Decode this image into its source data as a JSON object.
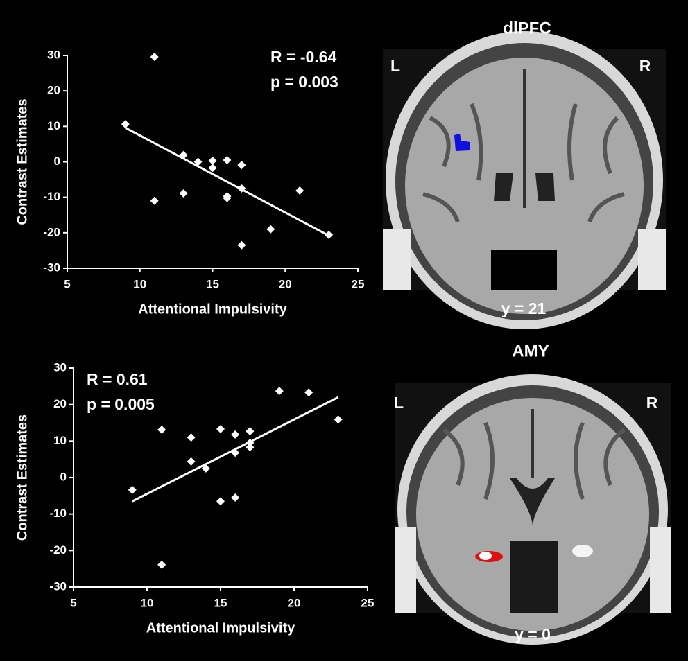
{
  "chart_data": [
    {
      "type": "scatter",
      "xlabel": "Attentional Impulsivity",
      "ylabel": "Contrast Estimates",
      "annotations": [
        "R = -0.64",
        "p = 0.003"
      ],
      "x": [
        9,
        11,
        11,
        13,
        13,
        14,
        15,
        15,
        16,
        16,
        16,
        17,
        17,
        17,
        19,
        21,
        23
      ],
      "values": [
        10.6,
        29.6,
        -11,
        1.9,
        -8.9,
        0,
        0.3,
        -1.7,
        0.5,
        -9.7,
        -10.2,
        -0.9,
        -7.5,
        -23.5,
        -19,
        -8.1,
        -20.6
      ],
      "trend": {
        "x": [
          9,
          23
        ],
        "values": [
          9.6,
          -20.8
        ]
      },
      "color": "#ffffff",
      "xlim": [
        5,
        25
      ],
      "xticks": [
        5,
        10,
        15,
        20,
        25
      ],
      "ylim": [
        -30,
        30
      ],
      "yticks": [
        -30,
        -20,
        -10,
        0,
        10,
        20,
        30
      ]
    },
    {
      "type": "scatter",
      "xlabel": "Attentional Impulsivity",
      "ylabel": "Contrast Estimates",
      "annotations": [
        "R = 0.61",
        "p = 0.005"
      ],
      "x": [
        9,
        11,
        11,
        13,
        13,
        14,
        15,
        15,
        16,
        16,
        16,
        17,
        17,
        17,
        19,
        21,
        23
      ],
      "values": [
        -3.4,
        13.1,
        -23.9,
        11,
        4.4,
        2.5,
        13.3,
        -6.5,
        11.8,
        6.8,
        -5.5,
        12.7,
        8.3,
        9.5,
        23.7,
        23.3,
        15.9
      ],
      "trend": {
        "x": [
          9,
          23
        ],
        "values": [
          -6.5,
          22.0
        ]
      },
      "color": "#ffffff",
      "xlim": [
        5,
        25
      ],
      "xticks": [
        5,
        10,
        15,
        20,
        25
      ],
      "ylim": [
        -30,
        30
      ],
      "yticks": [
        -30,
        -20,
        -10,
        0,
        10,
        20,
        30
      ]
    }
  ],
  "brain_panels": [
    {
      "title": "dlPFC",
      "left": "L",
      "right": "R",
      "slice": "y = 21"
    },
    {
      "title": "AMY",
      "left": "L",
      "right": "R",
      "slice": "y = 0"
    }
  ]
}
